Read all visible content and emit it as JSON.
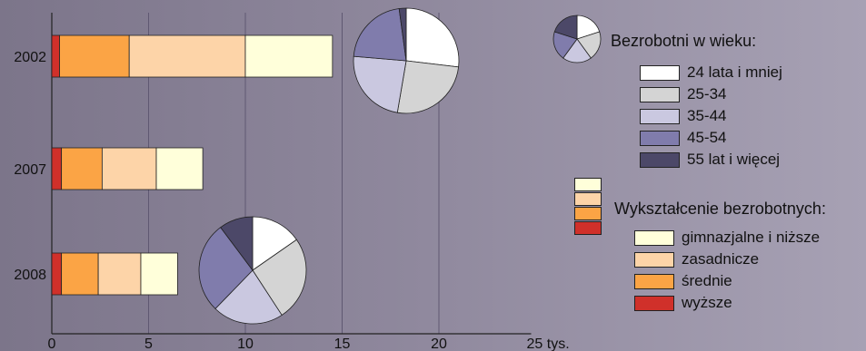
{
  "colors": {
    "age": [
      "#ffffff",
      "#d4d4d4",
      "#cac8e0",
      "#807cac",
      "#4c4868"
    ],
    "edu": [
      "#ffffda",
      "#fdd4a8",
      "#fba445",
      "#d0302a"
    ]
  },
  "legend_age": {
    "title": "Bezrobotni w wieku:",
    "items": [
      "24 lata i mniej",
      "25-34",
      "35-44",
      "45-54",
      "55 lat i więcej"
    ]
  },
  "legend_edu": {
    "title": "Wykształcenie bezrobotnych:",
    "items": [
      "gimnazjalne i niższe",
      "zasadnicze",
      "średnie",
      "wyższe"
    ]
  },
  "chart_data": [
    {
      "type": "bar",
      "orientation": "horizontal",
      "stacked": true,
      "categories": [
        "2002",
        "2007",
        "2008"
      ],
      "series": [
        {
          "name": "wyższe",
          "values": [
            0.4,
            0.5,
            0.5
          ]
        },
        {
          "name": "średnie",
          "values": [
            3.6,
            2.1,
            1.9
          ]
        },
        {
          "name": "zasadnicze",
          "values": [
            6.0,
            2.8,
            2.2
          ]
        },
        {
          "name": "gimnazjalne i niższe",
          "values": [
            4.5,
            2.4,
            1.9
          ]
        }
      ],
      "xticks": [
        "0",
        "5",
        "10",
        "15",
        "20",
        "25 tys."
      ],
      "xlim": [
        0,
        25
      ],
      "grid": true
    },
    {
      "type": "pie",
      "label": "2002",
      "labels": [
        "24 lata i mniej",
        "25-34",
        "35-44",
        "45-54",
        "55 lat i więcej"
      ],
      "values": [
        25,
        24,
        22,
        20,
        2
      ]
    },
    {
      "type": "pie",
      "label": "2008",
      "labels": [
        "24 lata i mniej",
        "25-34",
        "35-44",
        "45-54",
        "55 lat i więcej"
      ],
      "values": [
        15,
        25,
        21,
        27,
        10
      ]
    }
  ]
}
